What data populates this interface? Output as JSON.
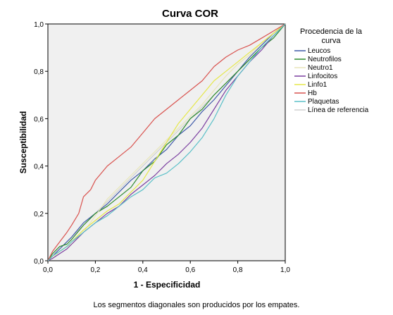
{
  "chart_data": {
    "type": "line",
    "title": "Curva COR",
    "xlabel": "1 - Especificidad",
    "ylabel": "Susceptibilidad",
    "xlim": [
      0,
      1
    ],
    "ylim": [
      0,
      1
    ],
    "x_ticks": [
      "0,0",
      "0,2",
      "0,4",
      "0,6",
      "0,8",
      "1,0"
    ],
    "y_ticks": [
      "0,0",
      "0,2",
      "0,4",
      "0,6",
      "0,8",
      "1,0"
    ],
    "grid": false,
    "plot_background": "#f0f0f0",
    "legend": {
      "title_lines": [
        "Procedencia de la",
        "curva"
      ],
      "placement": "right"
    },
    "footnote": "Los segmentos diagonales son producidos por los empates.",
    "series": [
      {
        "name": "Leucos",
        "color": "#3f5ba9",
        "x": [
          0,
          0.02,
          0.05,
          0.08,
          0.1,
          0.15,
          0.2,
          0.25,
          0.3,
          0.35,
          0.4,
          0.45,
          0.5,
          0.55,
          0.6,
          0.65,
          0.7,
          0.75,
          0.8,
          0.85,
          0.9,
          0.95,
          1.0
        ],
        "y": [
          0,
          0.02,
          0.05,
          0.08,
          0.1,
          0.16,
          0.2,
          0.24,
          0.29,
          0.34,
          0.38,
          0.43,
          0.47,
          0.53,
          0.57,
          0.63,
          0.68,
          0.74,
          0.8,
          0.86,
          0.91,
          0.96,
          1.0
        ]
      },
      {
        "name": "Neutrofilos",
        "color": "#2e8b2e",
        "x": [
          0,
          0.02,
          0.05,
          0.08,
          0.1,
          0.15,
          0.2,
          0.25,
          0.3,
          0.35,
          0.4,
          0.45,
          0.5,
          0.55,
          0.6,
          0.65,
          0.7,
          0.75,
          0.8,
          0.85,
          0.9,
          0.95,
          1.0
        ],
        "y": [
          0,
          0.03,
          0.06,
          0.07,
          0.09,
          0.15,
          0.2,
          0.23,
          0.27,
          0.31,
          0.38,
          0.42,
          0.49,
          0.53,
          0.6,
          0.64,
          0.7,
          0.75,
          0.8,
          0.85,
          0.9,
          0.94,
          1.0
        ]
      },
      {
        "name": "Neutro1",
        "color": "#e8e6b8",
        "x": [
          0,
          0.02,
          0.05,
          0.08,
          0.1,
          0.15,
          0.2,
          0.25,
          0.3,
          0.35,
          0.4,
          0.45,
          0.5,
          0.55,
          0.6,
          0.65,
          0.7,
          0.75,
          0.8,
          0.85,
          0.9,
          0.95,
          1.0
        ],
        "y": [
          0,
          0.01,
          0.04,
          0.06,
          0.07,
          0.12,
          0.19,
          0.26,
          0.31,
          0.36,
          0.41,
          0.46,
          0.51,
          0.56,
          0.61,
          0.66,
          0.72,
          0.78,
          0.83,
          0.87,
          0.92,
          0.96,
          1.0
        ]
      },
      {
        "name": "Linfocitos",
        "color": "#7b3fa0",
        "x": [
          0,
          0.02,
          0.05,
          0.08,
          0.1,
          0.15,
          0.2,
          0.25,
          0.3,
          0.35,
          0.4,
          0.45,
          0.5,
          0.55,
          0.6,
          0.65,
          0.7,
          0.75,
          0.8,
          0.85,
          0.9,
          0.95,
          1.0
        ],
        "y": [
          0,
          0.01,
          0.03,
          0.05,
          0.07,
          0.12,
          0.16,
          0.2,
          0.23,
          0.28,
          0.32,
          0.36,
          0.41,
          0.45,
          0.5,
          0.56,
          0.64,
          0.72,
          0.78,
          0.84,
          0.89,
          0.95,
          1.0
        ]
      },
      {
        "name": "Linfo1",
        "color": "#e6e84a",
        "x": [
          0,
          0.02,
          0.05,
          0.08,
          0.1,
          0.15,
          0.2,
          0.25,
          0.3,
          0.35,
          0.4,
          0.45,
          0.5,
          0.55,
          0.6,
          0.65,
          0.7,
          0.75,
          0.8,
          0.85,
          0.9,
          0.95,
          1.0
        ],
        "y": [
          0,
          0.02,
          0.04,
          0.06,
          0.08,
          0.13,
          0.17,
          0.21,
          0.24,
          0.29,
          0.34,
          0.42,
          0.5,
          0.58,
          0.64,
          0.7,
          0.76,
          0.8,
          0.84,
          0.88,
          0.92,
          0.96,
          1.0
        ]
      },
      {
        "name": "Hb",
        "color": "#d9534f",
        "x": [
          0,
          0.02,
          0.05,
          0.08,
          0.1,
          0.13,
          0.15,
          0.18,
          0.2,
          0.25,
          0.3,
          0.35,
          0.4,
          0.45,
          0.5,
          0.55,
          0.6,
          0.65,
          0.7,
          0.75,
          0.8,
          0.85,
          0.9,
          0.95,
          1.0
        ],
        "y": [
          0,
          0.04,
          0.08,
          0.12,
          0.15,
          0.2,
          0.27,
          0.3,
          0.34,
          0.4,
          0.44,
          0.48,
          0.54,
          0.6,
          0.64,
          0.68,
          0.72,
          0.76,
          0.82,
          0.86,
          0.89,
          0.91,
          0.94,
          0.97,
          1.0
        ]
      },
      {
        "name": "Plaquetas",
        "color": "#5bc0c8",
        "x": [
          0,
          0.02,
          0.05,
          0.08,
          0.1,
          0.15,
          0.2,
          0.25,
          0.3,
          0.35,
          0.4,
          0.45,
          0.5,
          0.55,
          0.6,
          0.65,
          0.7,
          0.75,
          0.8,
          0.85,
          0.9,
          0.95,
          1.0
        ],
        "y": [
          0,
          0.02,
          0.04,
          0.06,
          0.08,
          0.12,
          0.16,
          0.19,
          0.23,
          0.27,
          0.3,
          0.35,
          0.37,
          0.41,
          0.46,
          0.52,
          0.6,
          0.7,
          0.78,
          0.84,
          0.9,
          0.95,
          1.0
        ]
      },
      {
        "name": "Línea de referencia",
        "color": "#d0d0d0",
        "x": [
          0,
          1
        ],
        "y": [
          0,
          1
        ]
      }
    ]
  }
}
